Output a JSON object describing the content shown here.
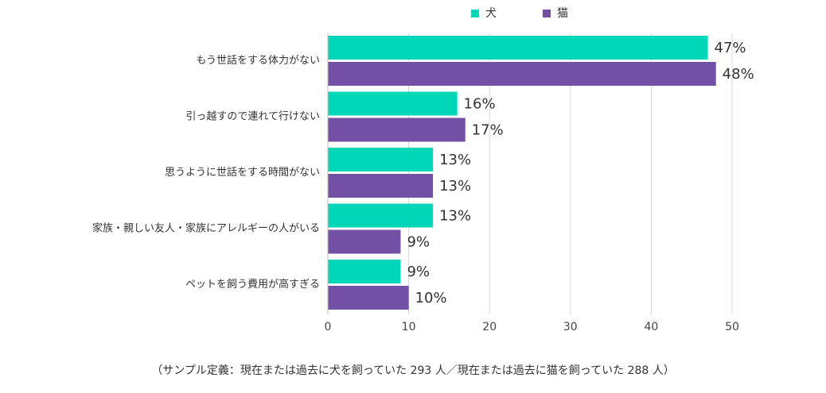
{
  "chart_data": {
    "type": "bar",
    "orientation": "horizontal",
    "categories": [
      "もう世話をする体力がない",
      "引っ越すので連れて行けない",
      "思うように世話をする時間がない",
      "家族・親しい友人・家族にアレルギーの人がいる",
      "ペットを飼う費用が高すぎる"
    ],
    "series": [
      {
        "name": "犬",
        "values": [
          47,
          16,
          13,
          13,
          9
        ],
        "labels": [
          "47%",
          "16%",
          "13%",
          "13%",
          "9%"
        ],
        "color": "#00d6b8"
      },
      {
        "name": "猫",
        "values": [
          48,
          17,
          13,
          9,
          10
        ],
        "labels": [
          "48%",
          "17%",
          "13%",
          "9%",
          "10%"
        ],
        "color": "#7250a5"
      }
    ],
    "xlim": [
      0,
      50
    ],
    "xticks": [
      "0",
      "10",
      "20",
      "30",
      "40",
      "50"
    ],
    "grid": true,
    "legend": "top-center",
    "footnote": "（サンプル定義：現在または過去に犬を飼っていた 293 人／現在または過去に猫を飼っていた 288 人）"
  }
}
